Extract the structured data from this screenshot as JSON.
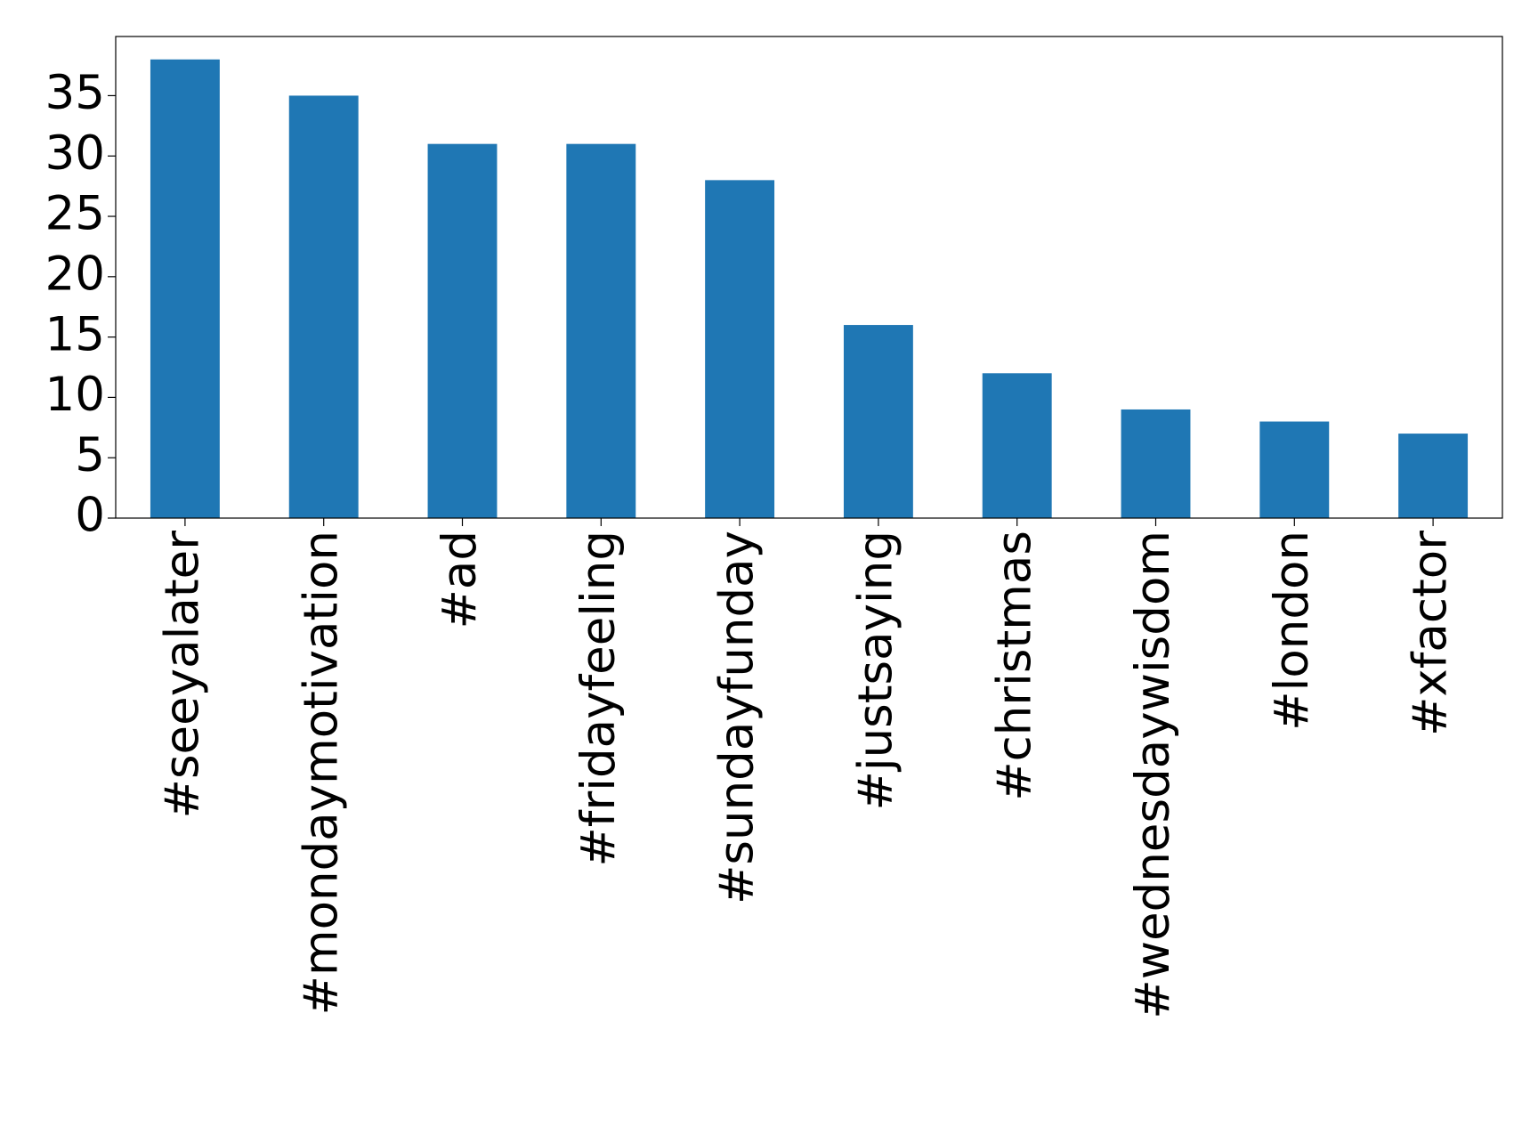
{
  "chart_data": {
    "type": "bar",
    "categories": [
      "#seeyalater",
      "#mondaymotivation",
      "#ad",
      "#fridayfeeling",
      "#sundayfunday",
      "#justsaying",
      "#christmas",
      "#wednesdaywisdom",
      "#london",
      "#xfactor"
    ],
    "values": [
      38,
      35,
      31,
      31,
      28,
      16,
      12,
      9,
      8,
      7
    ],
    "color": "#1f77b4",
    "ylim": [
      0,
      39.9
    ],
    "yticks": [
      0,
      5,
      10,
      15,
      20,
      25,
      30,
      35
    ],
    "grid": false
  }
}
